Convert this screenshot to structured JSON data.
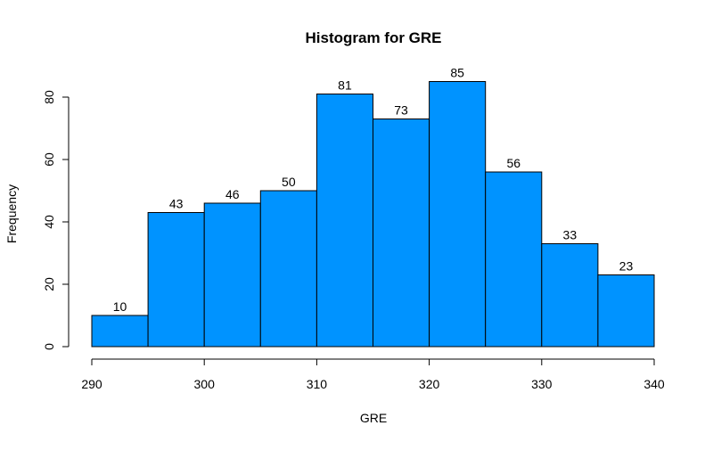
{
  "chart_data": {
    "type": "histogram",
    "title": "Histogram for GRE",
    "xlabel": "GRE",
    "ylabel": "Frequency",
    "bins": [
      {
        "start": 290,
        "end": 295,
        "count": 10
      },
      {
        "start": 295,
        "end": 300,
        "count": 43
      },
      {
        "start": 300,
        "end": 305,
        "count": 46
      },
      {
        "start": 305,
        "end": 310,
        "count": 50
      },
      {
        "start": 310,
        "end": 315,
        "count": 81
      },
      {
        "start": 315,
        "end": 320,
        "count": 73
      },
      {
        "start": 320,
        "end": 325,
        "count": 85
      },
      {
        "start": 325,
        "end": 330,
        "count": 56
      },
      {
        "start": 330,
        "end": 335,
        "count": 33
      },
      {
        "start": 335,
        "end": 340,
        "count": 23
      }
    ],
    "data_labels": [
      "10",
      "43",
      "46",
      "50",
      "81",
      "73",
      "85",
      "56",
      "33",
      "23"
    ],
    "x_ticks": [
      290,
      300,
      310,
      320,
      330,
      340
    ],
    "x_tick_labels": [
      "290",
      "300",
      "310",
      "320",
      "330",
      "340"
    ],
    "y_ticks": [
      0,
      20,
      40,
      60,
      80
    ],
    "y_tick_labels": [
      "0",
      "20",
      "40",
      "60",
      "80"
    ],
    "xlim": [
      290,
      340
    ],
    "ylim": [
      0,
      85
    ],
    "grid": false,
    "bar_color": "#0093FF",
    "bar_edge_color": "#000000"
  }
}
